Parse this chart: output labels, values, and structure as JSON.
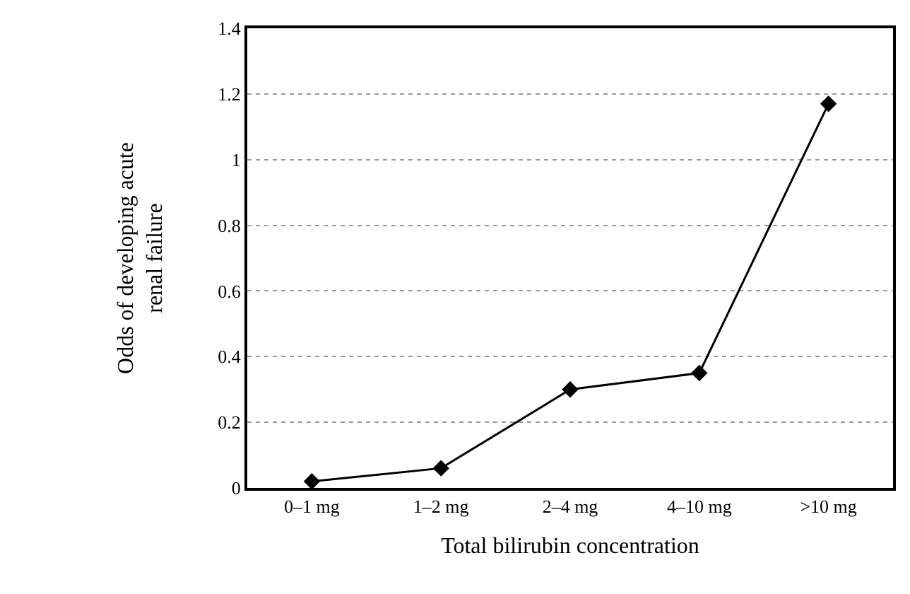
{
  "chart_data": {
    "type": "line",
    "xlabel": "Total bilirubin concentration",
    "ylabel": "Odds of developing acute\nrenal failure",
    "categories": [
      "0–1 mg",
      "1–2 mg",
      "2–4 mg",
      "4–10 mg",
      ">10 mg"
    ],
    "series": [
      {
        "color": "#000000",
        "values": [
          0.02,
          0.06,
          0.3,
          0.35,
          1.17
        ]
      }
    ],
    "ylim": [
      0,
      1.4
    ],
    "yticks": [
      0,
      0.2,
      0.4,
      0.6,
      0.8,
      1,
      1.2,
      1.4
    ],
    "grid": "y",
    "legend": false,
    "marker": "diamond",
    "line_style": "solid"
  }
}
